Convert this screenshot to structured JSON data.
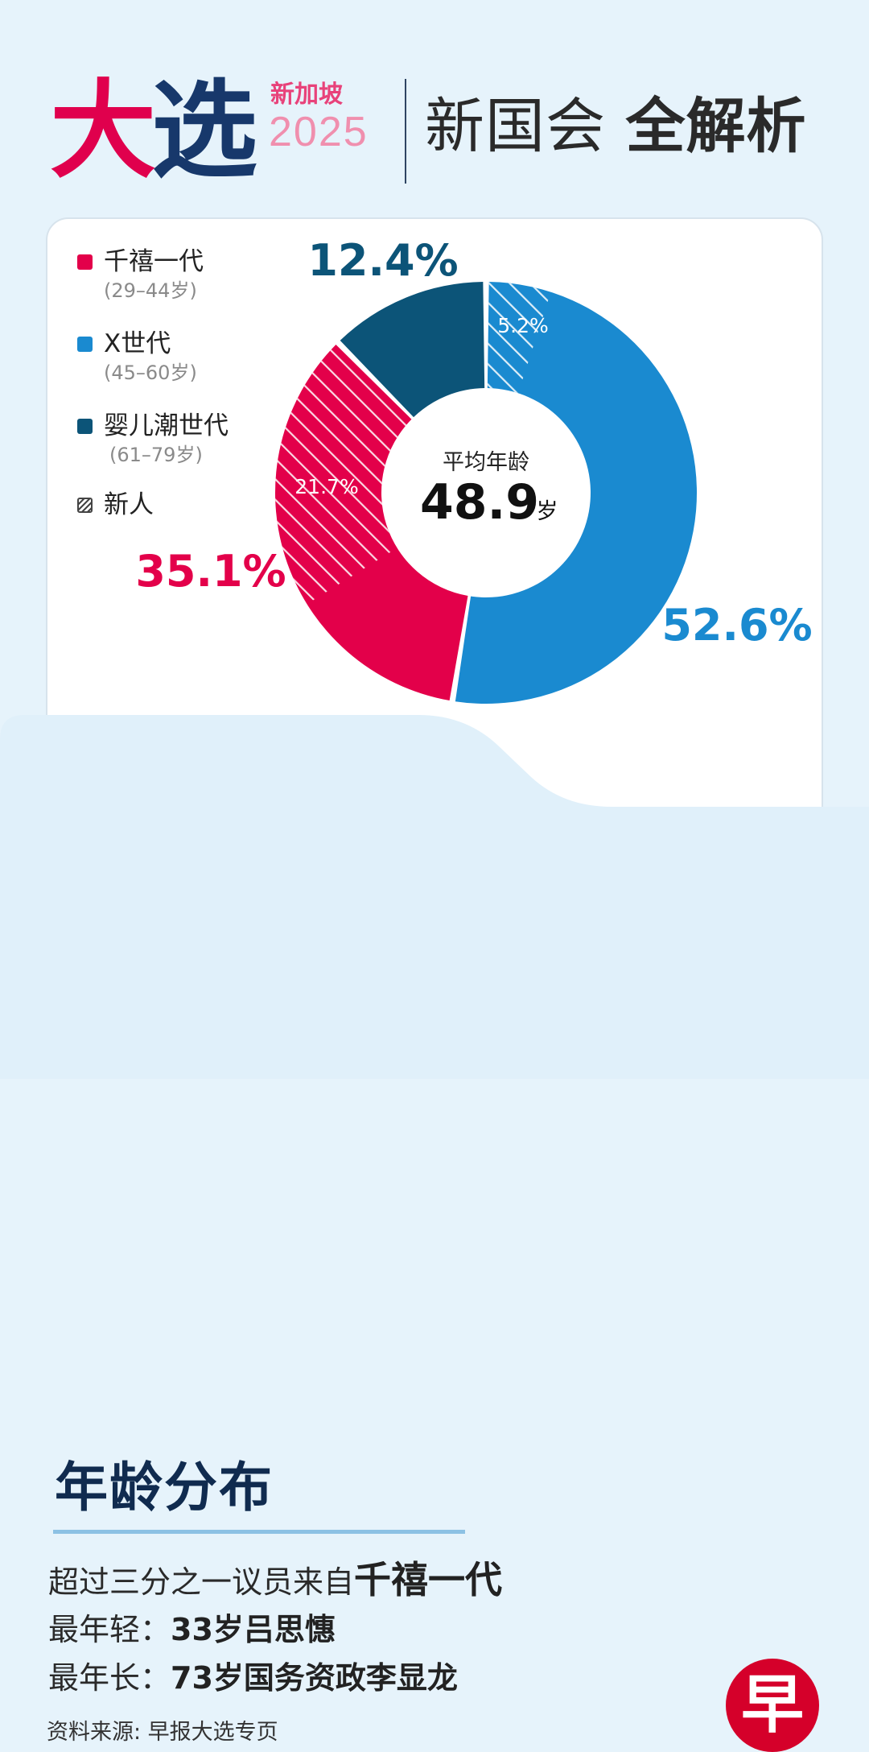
{
  "header": {
    "brand_part1": "大",
    "brand_part2": "选",
    "brand_sub": "新加坡",
    "brand_year": "2025",
    "title_regular": "新国会",
    "title_strong": "全解析"
  },
  "chart_data": {
    "type": "pie",
    "categories": [
      "千禧一代",
      "X世代",
      "婴儿潮世代"
    ],
    "values": [
      35.1,
      52.6,
      12.4
    ],
    "value_labels": [
      "35.1%",
      "52.6%",
      "12.4%"
    ],
    "newcomer_share": [
      21.7,
      5.2,
      0
    ],
    "newcomer_labels": [
      "21.7%",
      "5.2%",
      ""
    ],
    "colors": [
      "#e3004a",
      "#1a8ad0",
      "#0c5478"
    ],
    "center_label": "平均年龄",
    "center_value": "48.9",
    "center_unit": "岁",
    "legend": [
      {
        "label": "千禧一代",
        "range": "(29–44岁)",
        "color": "#e3004a"
      },
      {
        "label": "X世代",
        "range": "(45–60岁)",
        "color": "#1a8ad0"
      },
      {
        "label": "婴儿潮世代",
        "range": "(61–79岁)",
        "color": "#0c5478"
      },
      {
        "label": "新人",
        "range": "",
        "color": "hatch"
      }
    ],
    "legend_position": "left"
  },
  "info": {
    "title": "年龄分布",
    "line1_prefix": "超过三分之一议员来自",
    "line1_strong": "千禧一代",
    "line2_label": "最年轻：",
    "line2_value": "33岁吕思憓",
    "line3_label": "最年长：",
    "line3_value": "73岁国务资政李显龙",
    "source": "资料来源: 早报大选专页",
    "logo_char": "早"
  }
}
